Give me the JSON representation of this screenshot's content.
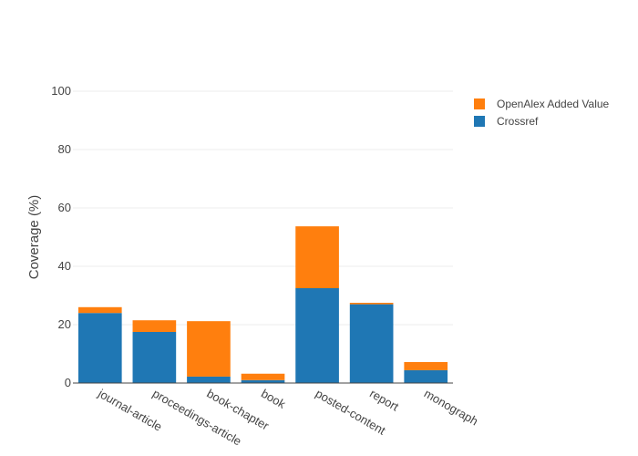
{
  "chart_data": {
    "type": "bar",
    "stacked": true,
    "categories": [
      "journal-article",
      "proceedings-article",
      "book-chapter",
      "book",
      "posted-content",
      "report",
      "monograph"
    ],
    "series": [
      {
        "name": "Crossref",
        "color": "#1f77b4",
        "values": [
          24,
          17.5,
          2.2,
          1,
          32.5,
          27,
          4.4
        ]
      },
      {
        "name": "OpenAlex Added Value",
        "color": "#ff7f0e",
        "values": [
          2,
          4,
          19,
          2.2,
          21.2,
          0.5,
          2.8
        ]
      }
    ],
    "ylabel": "Coverage (%)",
    "ylim": [
      0,
      100
    ],
    "yticks": [
      0,
      20,
      40,
      60,
      80,
      100
    ],
    "grid": true,
    "legend_position": "top-right",
    "legend_order": [
      "OpenAlex Added Value",
      "Crossref"
    ]
  }
}
